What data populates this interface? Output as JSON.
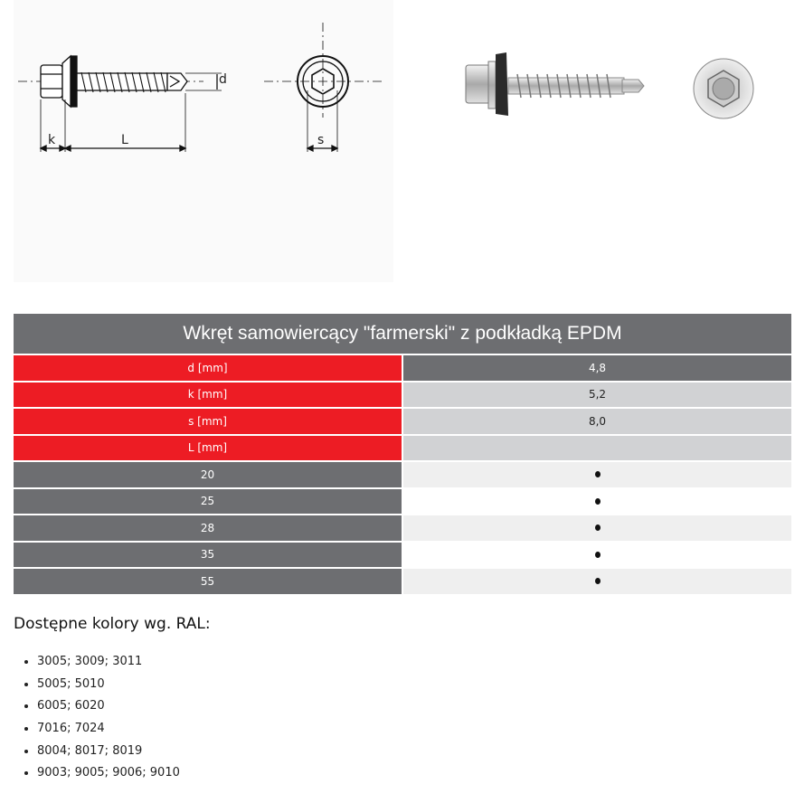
{
  "drawing": {
    "labels": {
      "k": "k",
      "L": "L",
      "d": "d",
      "s": "s"
    }
  },
  "table": {
    "title": "Wkręt samowiercący \"farmerski\" z podkładką EPDM",
    "spec_rows": [
      {
        "label": "d [mm]",
        "value": "4,8"
      },
      {
        "label": "k [mm]",
        "value": "5,2"
      },
      {
        "label": "s [mm]",
        "value": "8,0"
      },
      {
        "label": "L [mm]",
        "value": ""
      }
    ],
    "length_rows": [
      {
        "length": "20",
        "available": true
      },
      {
        "length": "25",
        "available": true
      },
      {
        "length": "28",
        "available": true
      },
      {
        "length": "35",
        "available": true
      },
      {
        "length": "55",
        "available": true
      }
    ],
    "colors": {
      "header": "#6d6e71",
      "label": "#ed1c24"
    }
  },
  "colors_section": {
    "heading": "Dostępne kolory wg. RAL:",
    "items": [
      "3005; 3009; 3011",
      "5005; 5010",
      "6005; 6020",
      "7016; 7024",
      "8004; 8017; 8019",
      "9003; 9005; 9006; 9010"
    ]
  }
}
